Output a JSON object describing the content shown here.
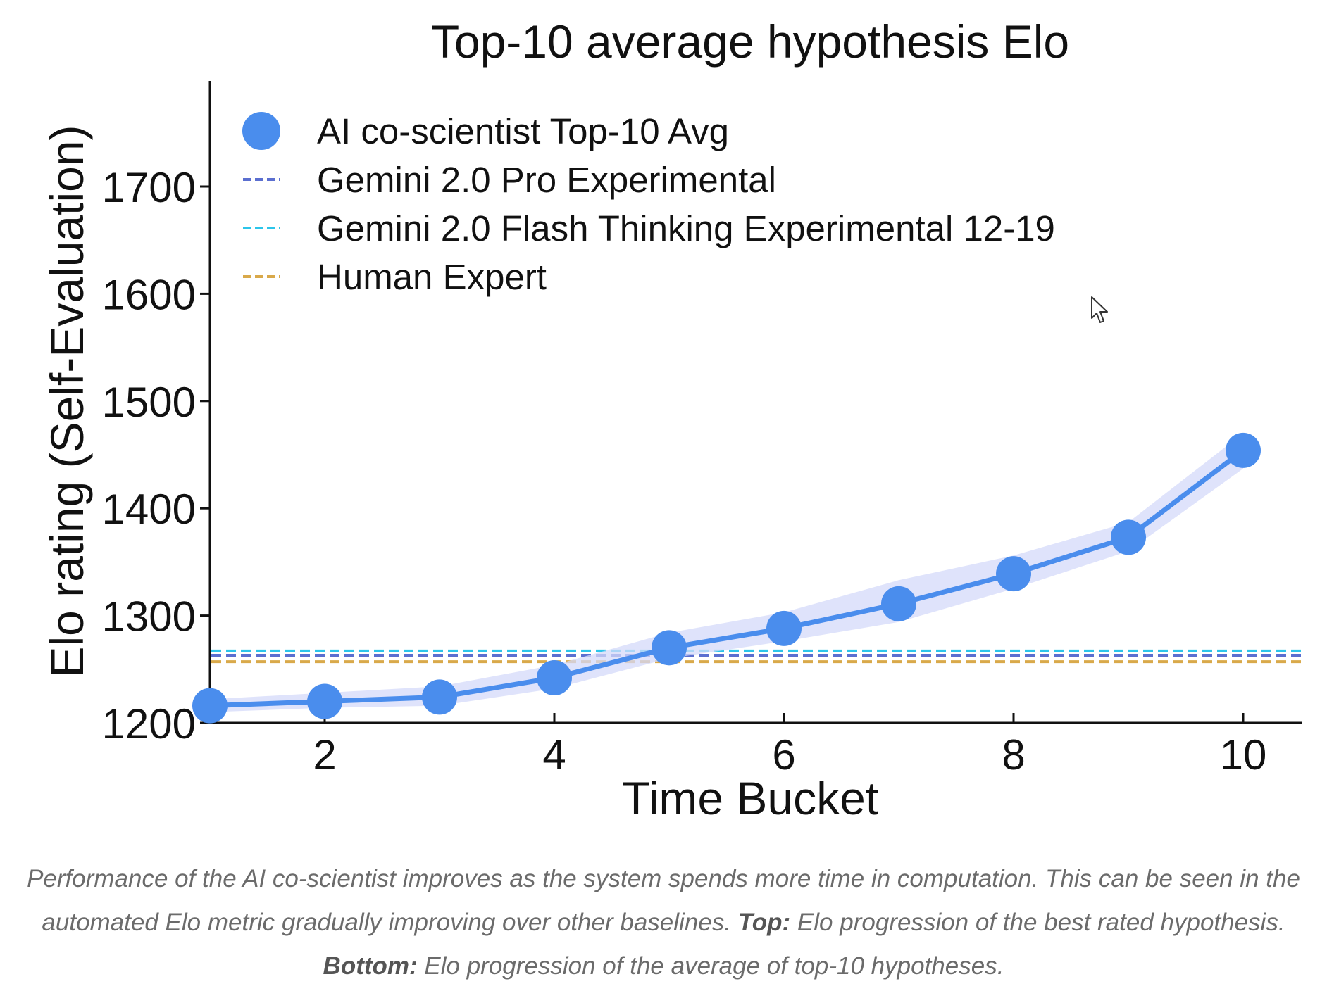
{
  "chart_data": {
    "type": "line",
    "title": "Top-10 average hypothesis Elo",
    "xlabel": "Time Bucket",
    "ylabel": "Elo rating (Self-Evaluation)",
    "xlim": [
      1,
      10.5
    ],
    "ylim": [
      1200,
      1800
    ],
    "xticks": [
      2,
      4,
      6,
      8,
      10
    ],
    "yticks": [
      1200,
      1300,
      1400,
      1500,
      1600,
      1700
    ],
    "grid": false,
    "legend_position": "top-left",
    "series": [
      {
        "name": "AI co-scientist Top-10 Avg",
        "style": "line-marker",
        "color": "#4a8ded",
        "x": [
          1,
          2,
          3,
          4,
          5,
          6,
          7,
          8,
          9,
          10
        ],
        "values": [
          1216,
          1220,
          1224,
          1242,
          1270,
          1288,
          1311,
          1339,
          1373,
          1454
        ],
        "band_lower": [
          1210,
          1214,
          1216,
          1232,
          1260,
          1276,
          1294,
          1325,
          1360,
          1437
        ],
        "band_upper": [
          1222,
          1228,
          1234,
          1254,
          1284,
          1303,
          1333,
          1356,
          1387,
          1470
        ]
      }
    ],
    "baselines": [
      {
        "name": "Gemini 2.0 Pro Experimental",
        "value": 1263,
        "color": "#5b6fd0"
      },
      {
        "name": "Gemini 2.0 Flash Thinking Experimental 12-19",
        "value": 1267,
        "color": "#2cc5ea"
      },
      {
        "name": "Human Expert",
        "value": 1257,
        "color": "#d9a94a"
      }
    ]
  },
  "caption": {
    "text1": "Performance of the AI co-scientist improves as the system spends more time in computation. This can be seen in the automated Elo metric gradually improving over other baselines. ",
    "bold1": "Top:",
    "text2": " Elo progression of the best rated hypothesis. ",
    "bold2": "Bottom:",
    "text3": " Elo progression of the average of top-10 hypotheses."
  }
}
